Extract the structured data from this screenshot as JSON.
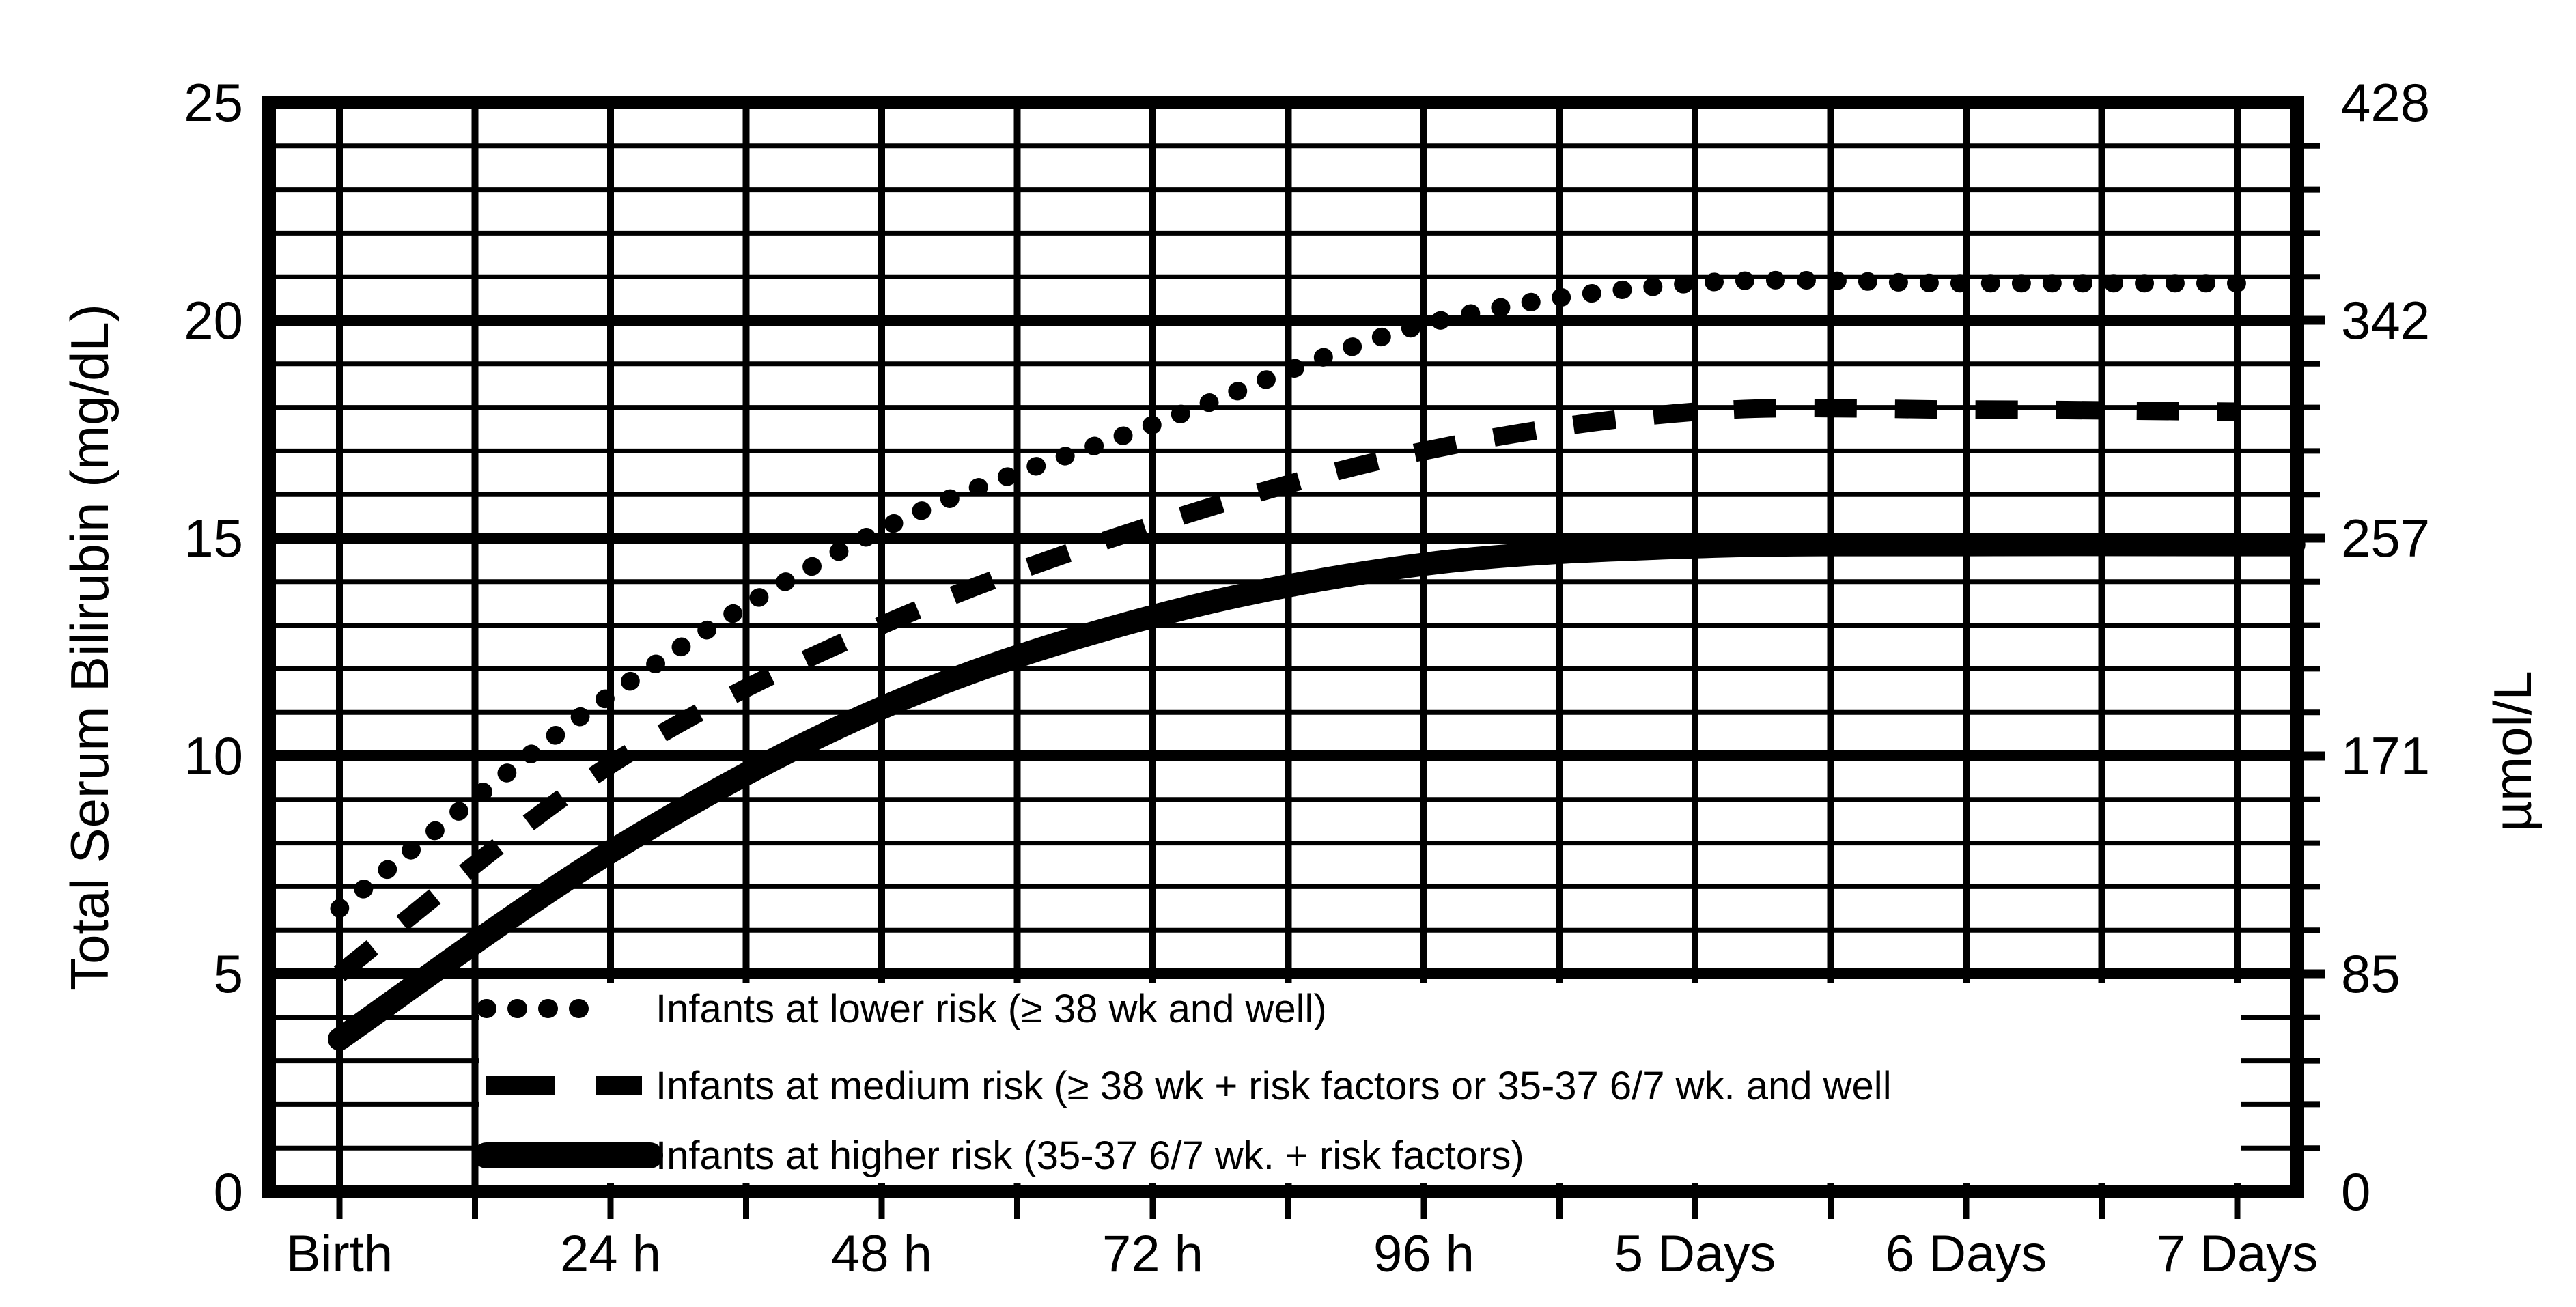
{
  "chart_data": {
    "type": "line",
    "title": "",
    "y_axis_left": {
      "title": "Total Serum Bilirubin (mg/dL)",
      "ticks": [
        0,
        5,
        10,
        15,
        20,
        25
      ],
      "range": [
        0,
        25
      ]
    },
    "y_axis_right": {
      "title": "µmol/L",
      "ticks": [
        0,
        85,
        171,
        257,
        342,
        428
      ]
    },
    "x_axis": {
      "tick_labels": [
        "Birth",
        "24 h",
        "48 h",
        "72 h",
        "96 h",
        "5 Days",
        "6 Days",
        "7 Days"
      ],
      "ticks_hours": [
        0,
        24,
        48,
        72,
        96,
        120,
        144,
        168
      ],
      "range_hours": [
        -6,
        173
      ],
      "minor_grid_step_hours": 12
    },
    "grid": {
      "y_minor_step": 1,
      "y_major_step": 5,
      "shown": true
    },
    "legend_position": "inside-bottom-left",
    "series": [
      {
        "name": "lower-risk",
        "style": "dotted",
        "legend": "Infants at lower risk (≥ 38 wk and well)",
        "x_hours": [
          0,
          24,
          48,
          72,
          96,
          120,
          144,
          168
        ],
        "y_mg_dl": [
          6.5,
          11.4,
          15.2,
          17.6,
          19.9,
          20.85,
          20.85,
          20.85
        ]
      },
      {
        "name": "medium-risk",
        "style": "dashed",
        "legend": "Infants at medium risk (≥ 38 wk + risk factors or 35-37 6/7 wk. and well",
        "x_hours": [
          0,
          24,
          48,
          72,
          96,
          120,
          144,
          168
        ],
        "y_mg_dl": [
          5.0,
          9.8,
          13.0,
          15.3,
          17.0,
          17.9,
          17.95,
          17.9
        ]
      },
      {
        "name": "higher-risk",
        "style": "solid",
        "legend": "Infants at higher risk (35-37 6/7 wk. + risk factors)",
        "x_hours": [
          0,
          24,
          48,
          72,
          96,
          120,
          144,
          168,
          173
        ],
        "y_mg_dl": [
          3.5,
          7.8,
          11.1,
          13.2,
          14.4,
          14.8,
          14.85,
          14.85,
          14.85
        ]
      }
    ],
    "colors": {
      "ink": "#000000",
      "paper": "#ffffff"
    }
  }
}
